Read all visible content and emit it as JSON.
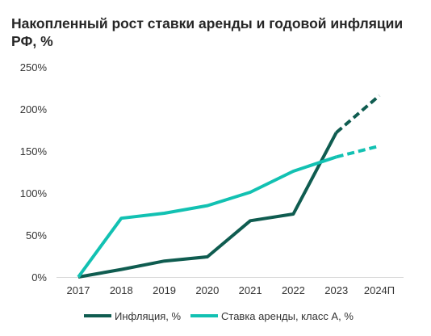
{
  "chart_data": {
    "type": "line",
    "title": "Накопленный рост ставки аренды и годовой инфляции РФ, %",
    "xlabel": "",
    "ylabel": "",
    "categories": [
      "2017",
      "2018",
      "2019",
      "2020",
      "2021",
      "2022",
      "2023",
      "2024П"
    ],
    "y_tick_labels": [
      "0%",
      "50%",
      "100%",
      "150%",
      "200%",
      "250%"
    ],
    "ylim": [
      0,
      250
    ],
    "grid": false,
    "legend_position": "bottom",
    "forecast_from_category": "2023",
    "series": [
      {
        "name": "Инфляция, %",
        "color": "#0f5c50",
        "line_style_forecast": "dashed",
        "values": [
          0,
          9,
          19,
          24,
          67,
          75,
          172,
          216
        ]
      },
      {
        "name": "Ставка аренды, класс А, %",
        "color": "#12c1b2",
        "line_style_forecast": "dashed",
        "values": [
          0,
          70,
          76,
          85,
          101,
          126,
          143,
          156
        ]
      }
    ]
  }
}
